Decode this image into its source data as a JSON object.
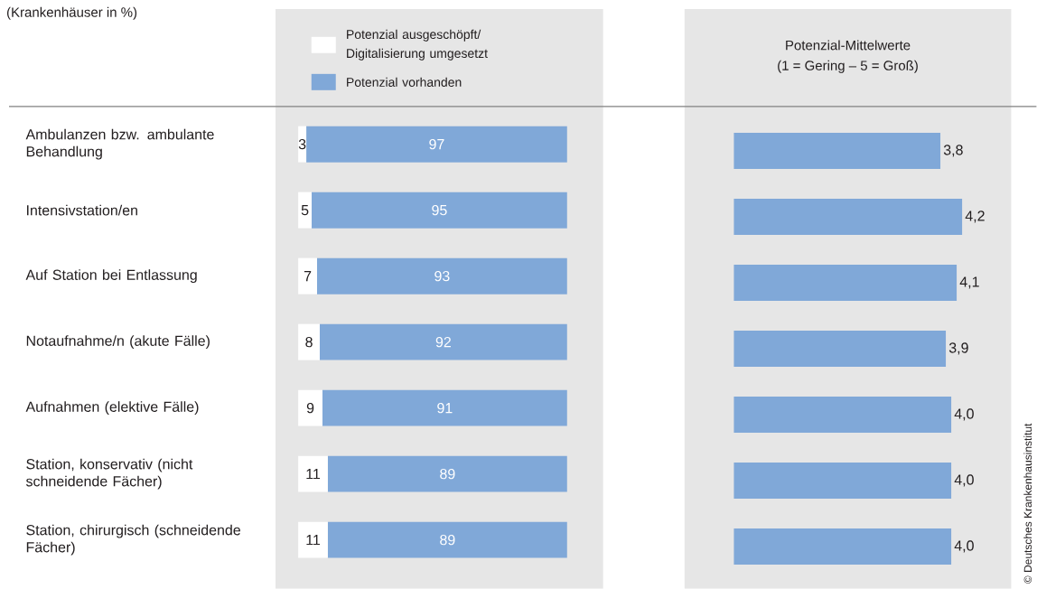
{
  "chart_data": [
    {
      "type": "bar",
      "orientation": "horizontal",
      "stacked": true,
      "data_labels": true,
      "legend": "top",
      "annotations": [
        "(Krankenhäuser in %)"
      ],
      "categories": [
        "Ambulanzen bzw. ambulante Behandlung",
        "Intensivstation/en",
        "Auf Station bei Entlassung",
        "Notaufnahme/n (akute Fälle)",
        "Aufnahmen (elektive Fälle)",
        "Station, konservativ (nicht schneidende Fächer)",
        "Station, chirurgisch (schneidende Fächer)"
      ],
      "series": [
        {
          "name": "Potenzial ausgeschöpft/ Digitalisierung umgesetzt",
          "color": "#ffffff",
          "values": [
            3,
            5,
            7,
            8,
            9,
            11,
            11
          ]
        },
        {
          "name": "Potenzial vorhanden",
          "color": "#80a8d8",
          "values": [
            97,
            95,
            93,
            92,
            91,
            89,
            89
          ]
        }
      ]
    },
    {
      "type": "bar",
      "orientation": "horizontal",
      "title": "Potenzial-Mittelwerte",
      "subtitle": "(1 = Gering – 5 = Groß)",
      "annotations": [
        "© Deutsches Krankenhausinstitut"
      ],
      "categories": [
        null,
        null,
        null,
        null,
        null,
        null,
        null
      ],
      "color": "#80a8d8",
      "values": [
        3.8,
        4.2,
        4.1,
        3.9,
        4.0,
        4.0,
        4.0
      ],
      "value_labels": [
        "3,8",
        "4,2",
        "4,1",
        "3,9",
        "4,0",
        "4,0",
        "4,0"
      ]
    }
  ]
}
